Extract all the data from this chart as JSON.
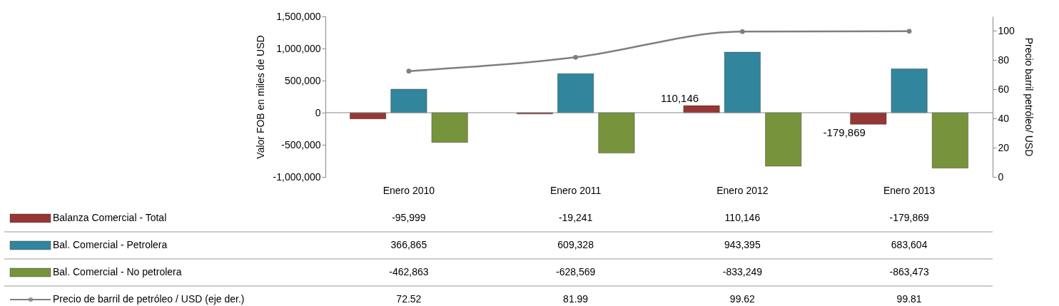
{
  "chart_data": {
    "type": "bar",
    "ylabel": "Valor FOB en miles de USD",
    "y2label": "Precio barril petróleo/ USD",
    "categories": [
      "Enero 2010",
      "Enero 2011",
      "Enero 2012",
      "Enero 2013"
    ],
    "series": [
      {
        "name": "Balanza Comercial - Total",
        "color": "#953735",
        "values": [
          -95999,
          -19241,
          110146,
          -179869
        ],
        "value_labels": [
          "-95,999",
          "-19,241",
          "110,146",
          "-179,869"
        ]
      },
      {
        "name": "Bal. Comercial - Petrolera",
        "color": "#31859c",
        "values": [
          366865,
          609328,
          943395,
          683604
        ],
        "value_labels": [
          "366,865",
          "609,328",
          "943,395",
          "683,604"
        ]
      },
      {
        "name": "Bal. Comercial - No petrolera",
        "color": "#77933c",
        "values": [
          -462863,
          -628569,
          -833249,
          -863473
        ],
        "value_labels": [
          "-462,863",
          "-628,569",
          "-833,249",
          "-863,473"
        ]
      },
      {
        "name": "Precio de barril de petróleo / USD (eje der.)",
        "color": "#7f7f7f",
        "type": "line",
        "axis": "y2",
        "values": [
          72.52,
          81.99,
          99.62,
          99.81
        ],
        "value_labels": [
          "72.52",
          "81.99",
          "99.62",
          "99.81"
        ]
      }
    ],
    "ylim": [
      -1000000,
      1500000
    ],
    "yticks": [
      {
        "value": -1000000,
        "label": "-1,000,000"
      },
      {
        "value": -500000,
        "label": "-500,000"
      },
      {
        "value": 0,
        "label": "0"
      },
      {
        "value": 500000,
        "label": "500,000"
      },
      {
        "value": 1000000,
        "label": "1,000,000"
      },
      {
        "value": 1500000,
        "label": "1,500,000"
      }
    ],
    "y2lim": [
      0,
      110
    ],
    "y2ticks": [
      0,
      20,
      40,
      60,
      80,
      100
    ],
    "annotations": [
      "110,146",
      "-179,869"
    ],
    "legend": "bottom",
    "marker": "circle"
  }
}
